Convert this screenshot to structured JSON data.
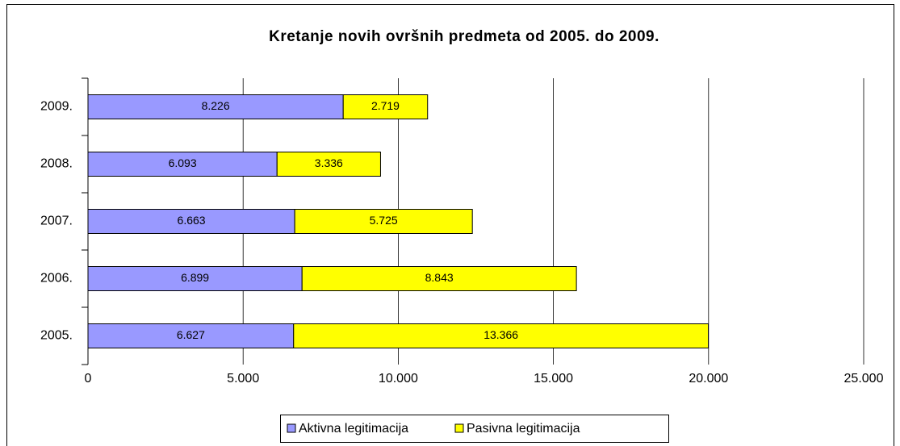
{
  "chart_data": {
    "type": "bar",
    "orientation": "horizontal",
    "stacked": true,
    "title": "Kretanje novih ovršnih predmeta od 2005. do 2009.",
    "categories": [
      "2005.",
      "2006.",
      "2007.",
      "2008.",
      "2009."
    ],
    "series": [
      {
        "name": "Aktivna legitimacija",
        "color": "#9999ff",
        "values": [
          6627,
          6899,
          6663,
          6093,
          8226
        ],
        "value_labels": [
          "6.627",
          "6.899",
          "6.663",
          "6.093",
          "8.226"
        ]
      },
      {
        "name": "Pasivna legitimacija",
        "color": "#ffff00",
        "values": [
          13366,
          8843,
          5725,
          3336,
          2719
        ],
        "value_labels": [
          "13.366",
          "8.843",
          "5.725",
          "3.336",
          "2.719"
        ]
      }
    ],
    "xlim": [
      0,
      25000
    ],
    "xticks": [
      0,
      {
        "value": 5000,
        "label": "5.000"
      },
      {
        "value": 10000,
        "label": "10.000"
      },
      {
        "value": 15000,
        "label": "15.000"
      },
      {
        "value": 20000,
        "label": "20.000"
      },
      {
        "value": 25000,
        "label": "25.000"
      }
    ],
    "grid": true,
    "legend": "bottom"
  }
}
